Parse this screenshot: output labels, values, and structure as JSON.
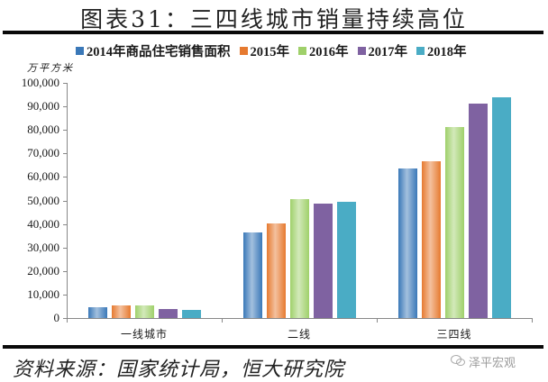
{
  "title": "图表31：三四线城市销量持续高位",
  "unit_label": "万平方米",
  "source": "资料来源：国家统计局，恒大研究院",
  "watermark": "泽平宏观",
  "colors": {
    "2014": "#3a78b8",
    "2015": "#e67a30",
    "2016": "#9fd06a",
    "2017": "#7f62a1",
    "2018": "#4aacc5"
  },
  "legend": [
    {
      "key": "2014",
      "label": "2014年商品住宅销售面积"
    },
    {
      "key": "2015",
      "label": "2015年"
    },
    {
      "key": "2016",
      "label": "2016年"
    },
    {
      "key": "2017",
      "label": "2017年"
    },
    {
      "key": "2018",
      "label": "2018年"
    }
  ],
  "y_ticks": [
    "100,000",
    "90,000",
    "80,000",
    "70,000",
    "60,000",
    "50,000",
    "40,000",
    "30,000",
    "20,000",
    "10,000",
    "0"
  ],
  "chart_data": {
    "type": "bar",
    "title": "图表31：三四线城市销量持续高位",
    "xlabel": "",
    "ylabel": "万平方米",
    "ylim": [
      0,
      100000
    ],
    "grid": false,
    "legend_position": "top",
    "categories": [
      "一线城市",
      "二线",
      "三四线"
    ],
    "series": [
      {
        "name": "2014年商品住宅销售面积",
        "values": [
          4600,
          36400,
          63600
        ]
      },
      {
        "name": "2015年",
        "values": [
          5400,
          40200,
          66700
        ]
      },
      {
        "name": "2016年",
        "values": [
          5400,
          50600,
          81200
        ]
      },
      {
        "name": "2017年",
        "values": [
          3800,
          48700,
          91200
        ]
      },
      {
        "name": "2018年",
        "values": [
          3500,
          49400,
          93900
        ]
      }
    ]
  }
}
